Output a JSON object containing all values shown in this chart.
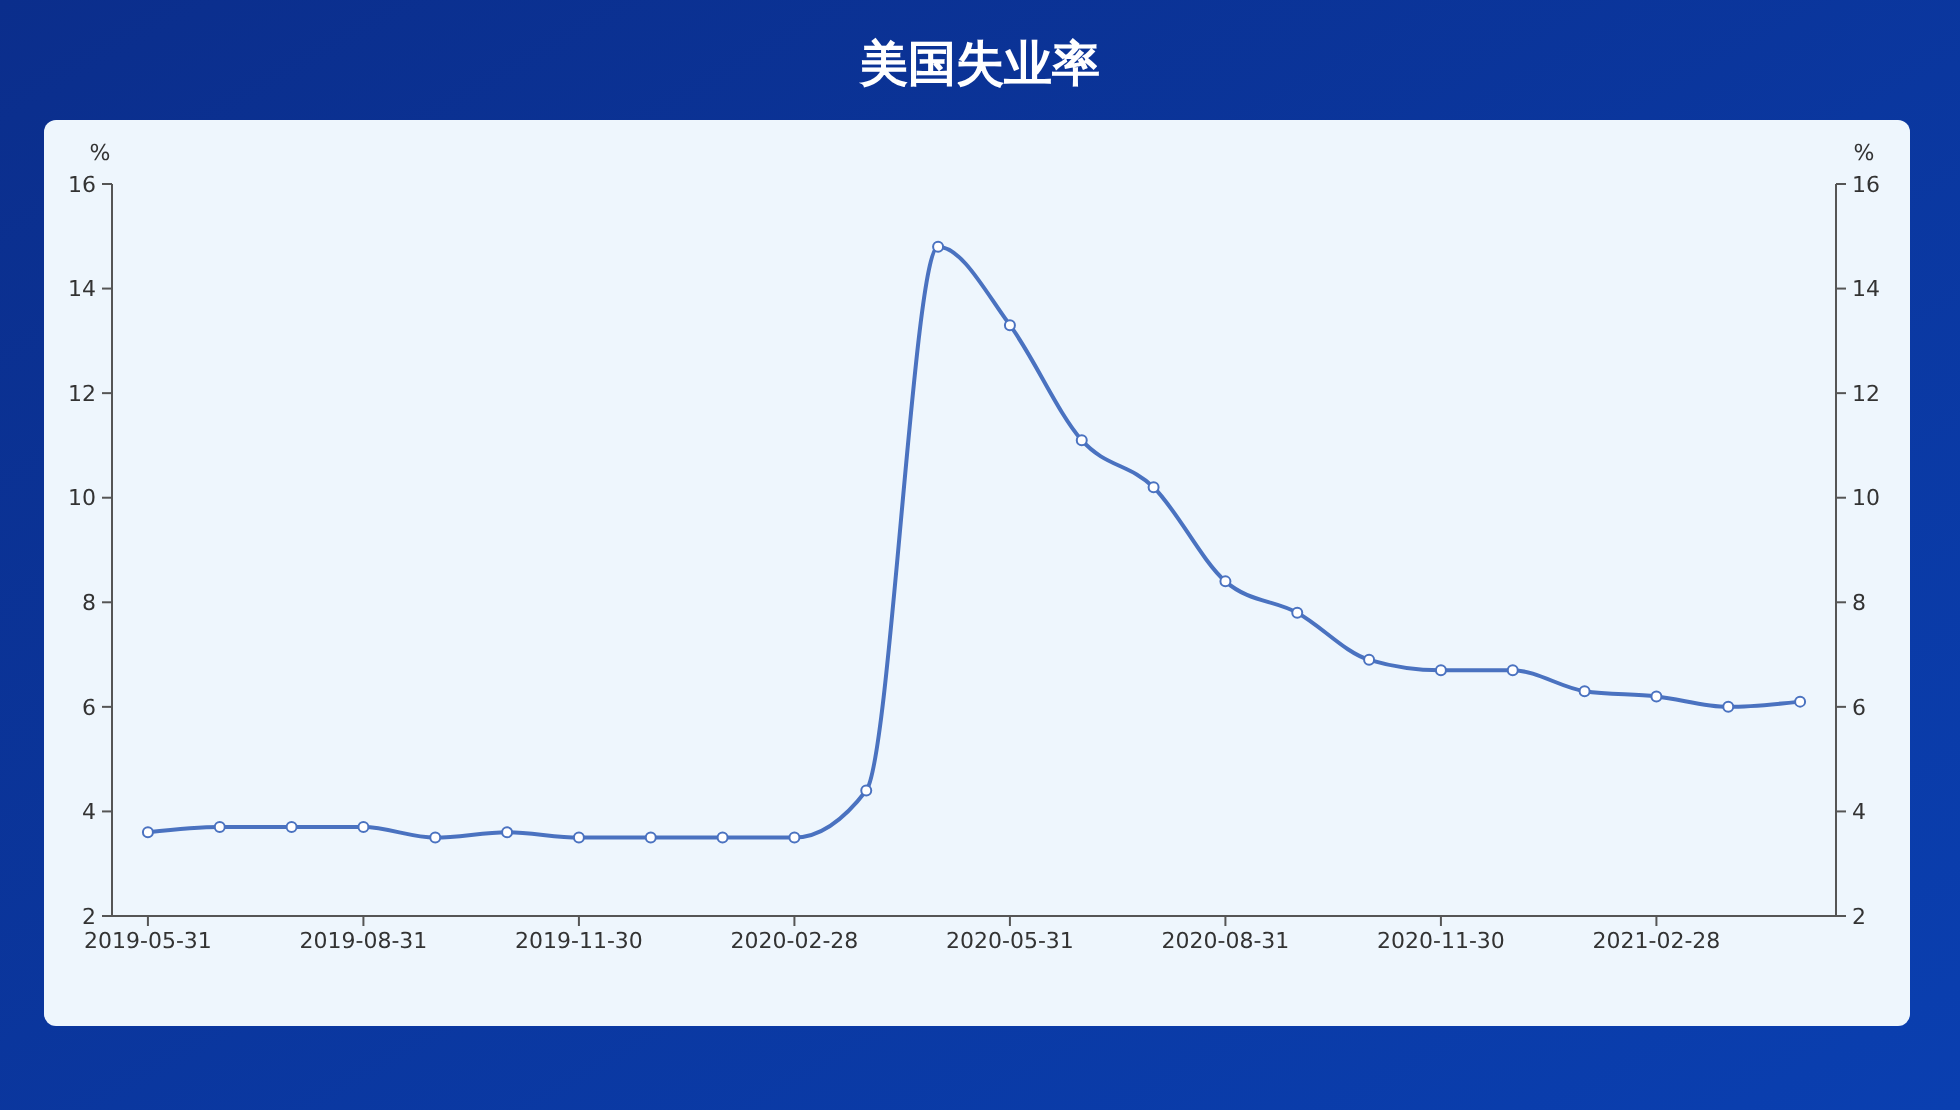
{
  "chart_data": {
    "type": "line",
    "title": "美国失业率",
    "ylabel": "%",
    "y2label": "%",
    "categories": [
      "2019-05-31",
      null,
      null,
      "2019-08-31",
      null,
      null,
      "2019-11-30",
      null,
      null,
      "2020-02-28",
      null,
      null,
      "2020-05-31",
      null,
      null,
      "2020-08-31",
      null,
      null,
      "2020-11-30",
      null,
      null,
      "2021-02-28",
      null,
      null
    ],
    "series": [
      {
        "color": "#4a72c0",
        "values": [
          3.6,
          3.7,
          3.7,
          3.7,
          3.5,
          3.6,
          3.5,
          3.5,
          3.5,
          3.5,
          4.4,
          14.8,
          13.3,
          11.1,
          10.2,
          8.4,
          7.8,
          6.9,
          6.7,
          6.7,
          6.3,
          6.2,
          6.0,
          6.1
        ]
      }
    ],
    "ylim": [
      2,
      16
    ],
    "yticks": [
      2,
      4,
      6,
      8,
      10,
      12,
      14,
      16
    ],
    "y2lim": [
      2,
      16
    ],
    "y2ticks": [
      2,
      4,
      6,
      8,
      10,
      12,
      14,
      16
    ],
    "marker": "circle",
    "line_style": "solid"
  }
}
